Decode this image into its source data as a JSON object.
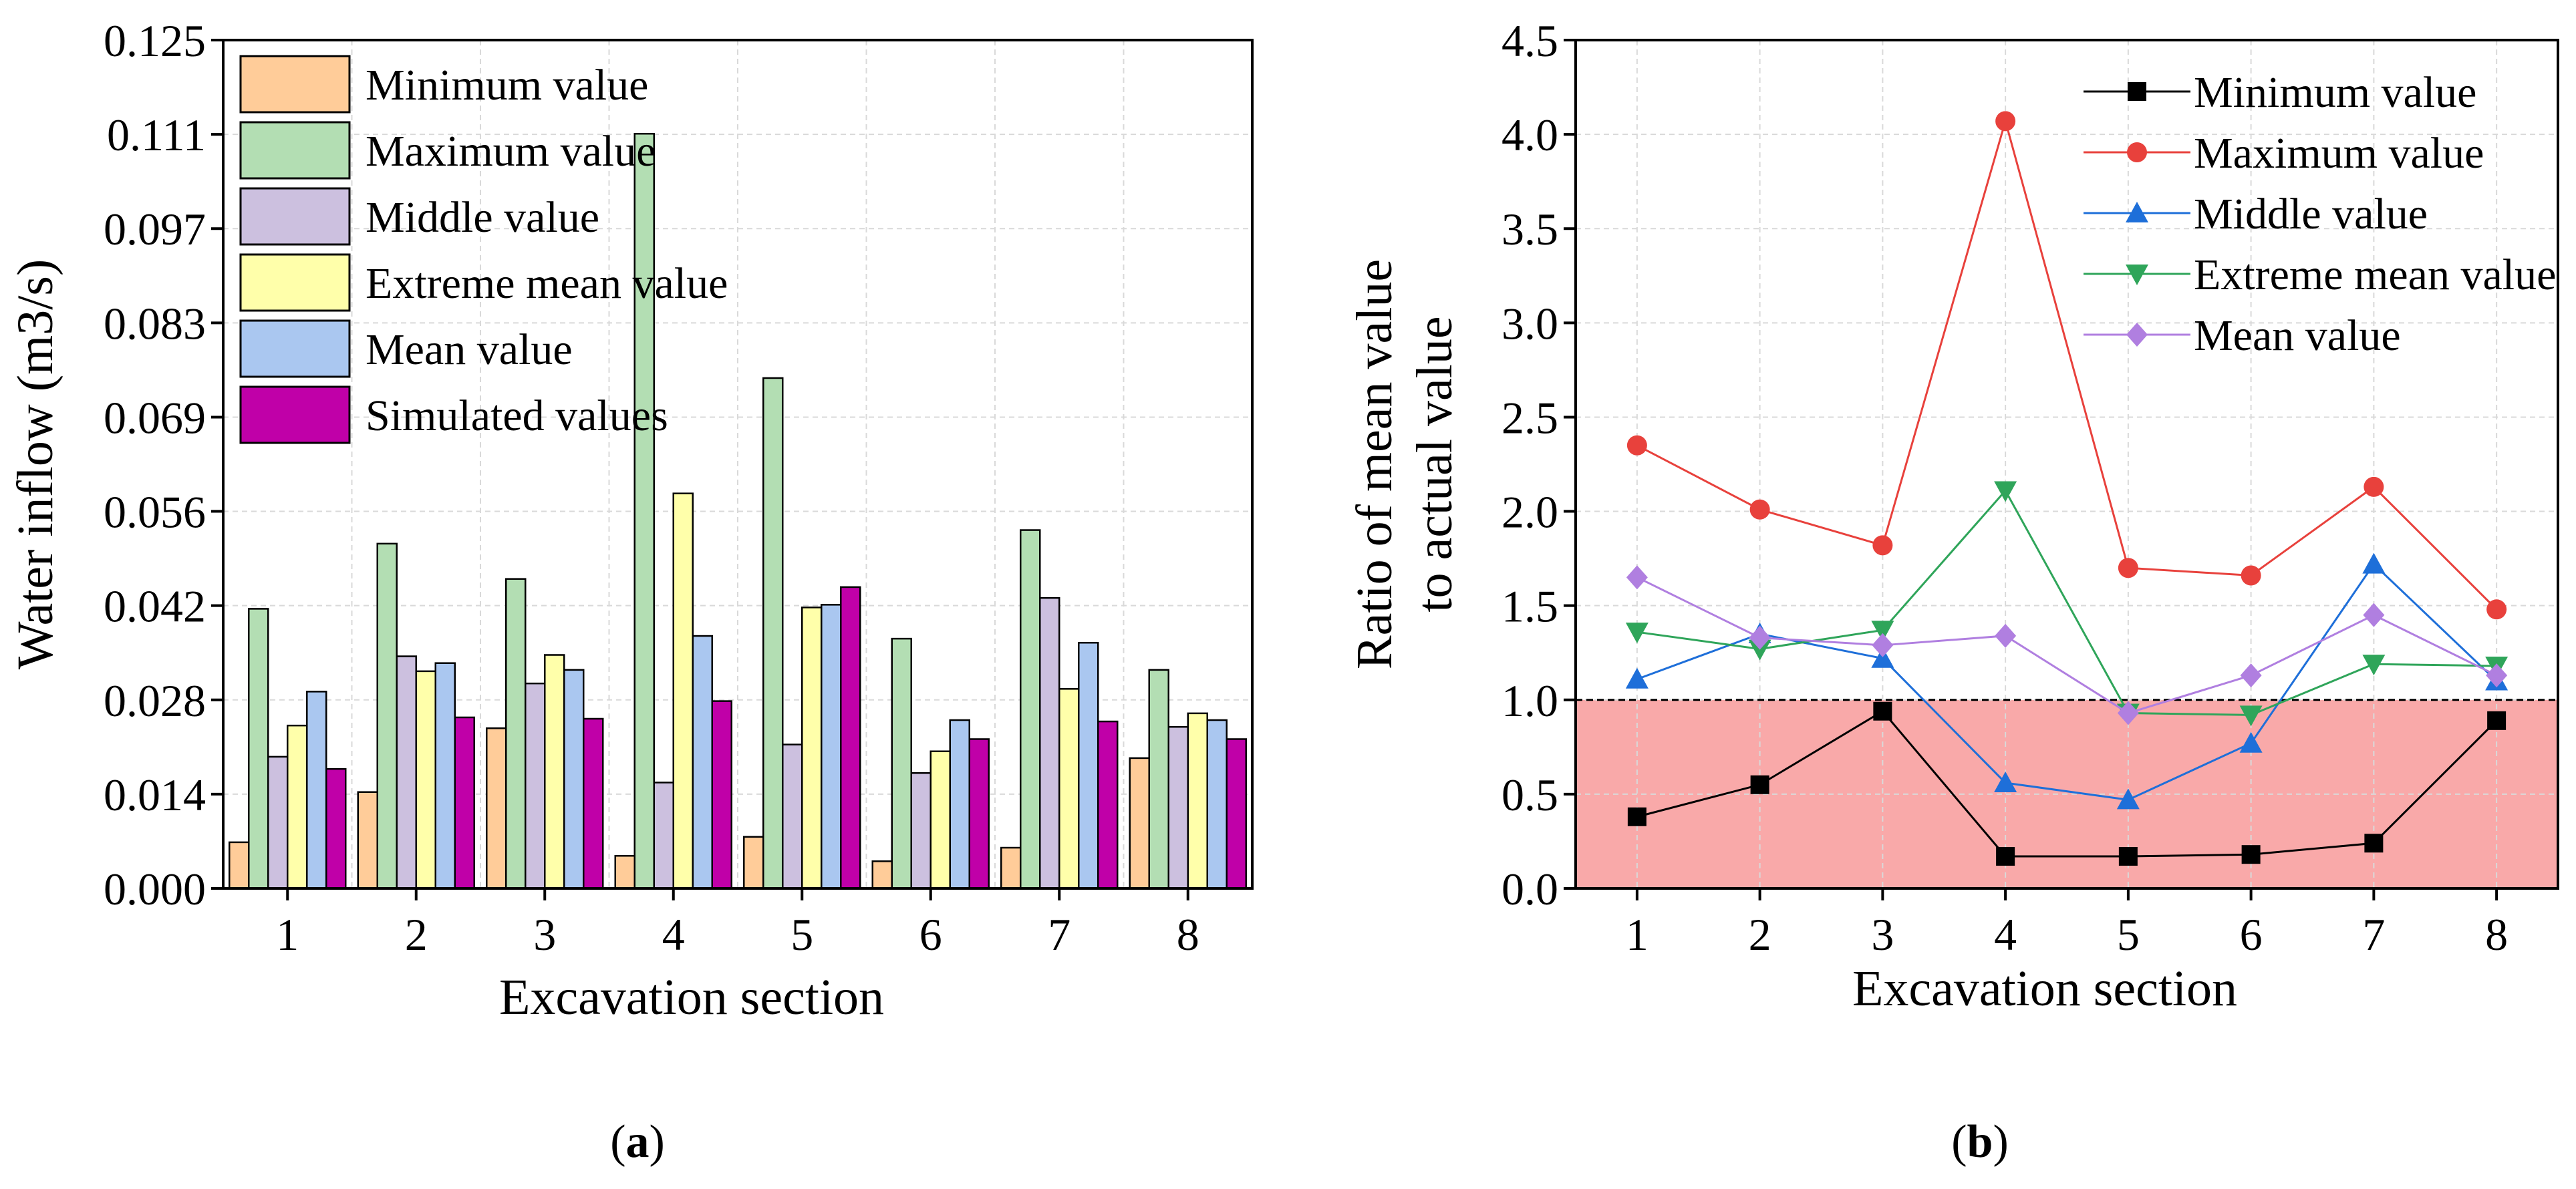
{
  "chart_data": [
    {
      "type": "bar",
      "panel": "(a)",
      "caption_paren_open": "(",
      "caption_letter": "a",
      "caption_paren_close": ")",
      "xlabel": "Excavation section",
      "ylabel": "Water inflow (m3/s)",
      "categories": [
        "1",
        "2",
        "3",
        "4",
        "5",
        "6",
        "7",
        "8"
      ],
      "yticks": [
        "0.000",
        "0.014",
        "0.028",
        "0.042",
        "0.056",
        "0.069",
        "0.083",
        "0.097",
        "0.111",
        "0.125"
      ],
      "ylim": [
        0,
        0.125
      ],
      "legend_position": "top-left",
      "grid": true,
      "series": [
        {
          "name": "Minimum value",
          "color": "#FFCC99",
          "values": [
            0.0068,
            0.0142,
            0.0236,
            0.0048,
            0.0076,
            0.004,
            0.006,
            0.0192
          ]
        },
        {
          "name": "Maximum value",
          "color": "#B3DEB3",
          "values": [
            0.0412,
            0.0508,
            0.0456,
            0.1112,
            0.0752,
            0.0368,
            0.0528,
            0.0322
          ]
        },
        {
          "name": "Middle value",
          "color": "#CCC0DF",
          "values": [
            0.0194,
            0.0342,
            0.0302,
            0.0156,
            0.0212,
            0.017,
            0.0428,
            0.0238
          ]
        },
        {
          "name": "Extreme mean value",
          "color": "#FFFFAA",
          "values": [
            0.024,
            0.032,
            0.0344,
            0.0582,
            0.0414,
            0.0202,
            0.0294,
            0.0258
          ]
        },
        {
          "name": "Mean value",
          "color": "#AAC7F0",
          "values": [
            0.029,
            0.0332,
            0.0322,
            0.0372,
            0.0418,
            0.0248,
            0.0362,
            0.0248
          ]
        },
        {
          "name": "Simulated values",
          "color": "#C000A8",
          "values": [
            0.0176,
            0.0252,
            0.025,
            0.0276,
            0.0444,
            0.022,
            0.0246,
            0.022
          ]
        }
      ]
    },
    {
      "type": "line",
      "panel": "(b)",
      "caption_paren_open": "(",
      "caption_letter": "b",
      "caption_paren_close": ")",
      "xlabel": "Excavation section",
      "ylabel_line1": "Ratio of mean value",
      "ylabel_line2": "to actual value",
      "x": [
        1,
        2,
        3,
        4,
        5,
        6,
        7,
        8
      ],
      "xticks": [
        "1",
        "2",
        "3",
        "4",
        "5",
        "6",
        "7",
        "8"
      ],
      "yticks": [
        "0.0",
        "0.5",
        "1.0",
        "1.5",
        "2.0",
        "2.5",
        "3.0",
        "3.5",
        "4.0",
        "4.5"
      ],
      "ylim": [
        0,
        4.5
      ],
      "xlim": [
        0.5,
        8.5
      ],
      "reference_line_y": 1.0,
      "shaded_region": [
        0,
        1.0
      ],
      "shaded_color": "#F9A9A9",
      "legend_position": "top-right",
      "grid": true,
      "series": [
        {
          "name": "Minimum value",
          "color": "#000000",
          "marker": "square",
          "values": [
            0.38,
            0.55,
            0.94,
            0.17,
            0.17,
            0.18,
            0.24,
            0.89
          ]
        },
        {
          "name": "Maximum value",
          "color": "#E8413C",
          "marker": "circle",
          "values": [
            2.35,
            2.01,
            1.82,
            4.07,
            1.7,
            1.66,
            2.13,
            1.48
          ]
        },
        {
          "name": "Middle value",
          "color": "#1E6FD9",
          "marker": "triangle-up",
          "values": [
            1.11,
            1.35,
            1.22,
            0.56,
            0.47,
            0.77,
            1.72,
            1.1
          ]
        },
        {
          "name": "Extreme mean value",
          "color": "#2FA55A",
          "marker": "triangle-down",
          "values": [
            1.36,
            1.27,
            1.37,
            2.11,
            0.93,
            0.92,
            1.19,
            1.18
          ]
        },
        {
          "name": "Mean value",
          "color": "#B07FE0",
          "marker": "diamond",
          "values": [
            1.65,
            1.33,
            1.29,
            1.34,
            0.93,
            1.13,
            1.45,
            1.13
          ]
        }
      ]
    }
  ]
}
